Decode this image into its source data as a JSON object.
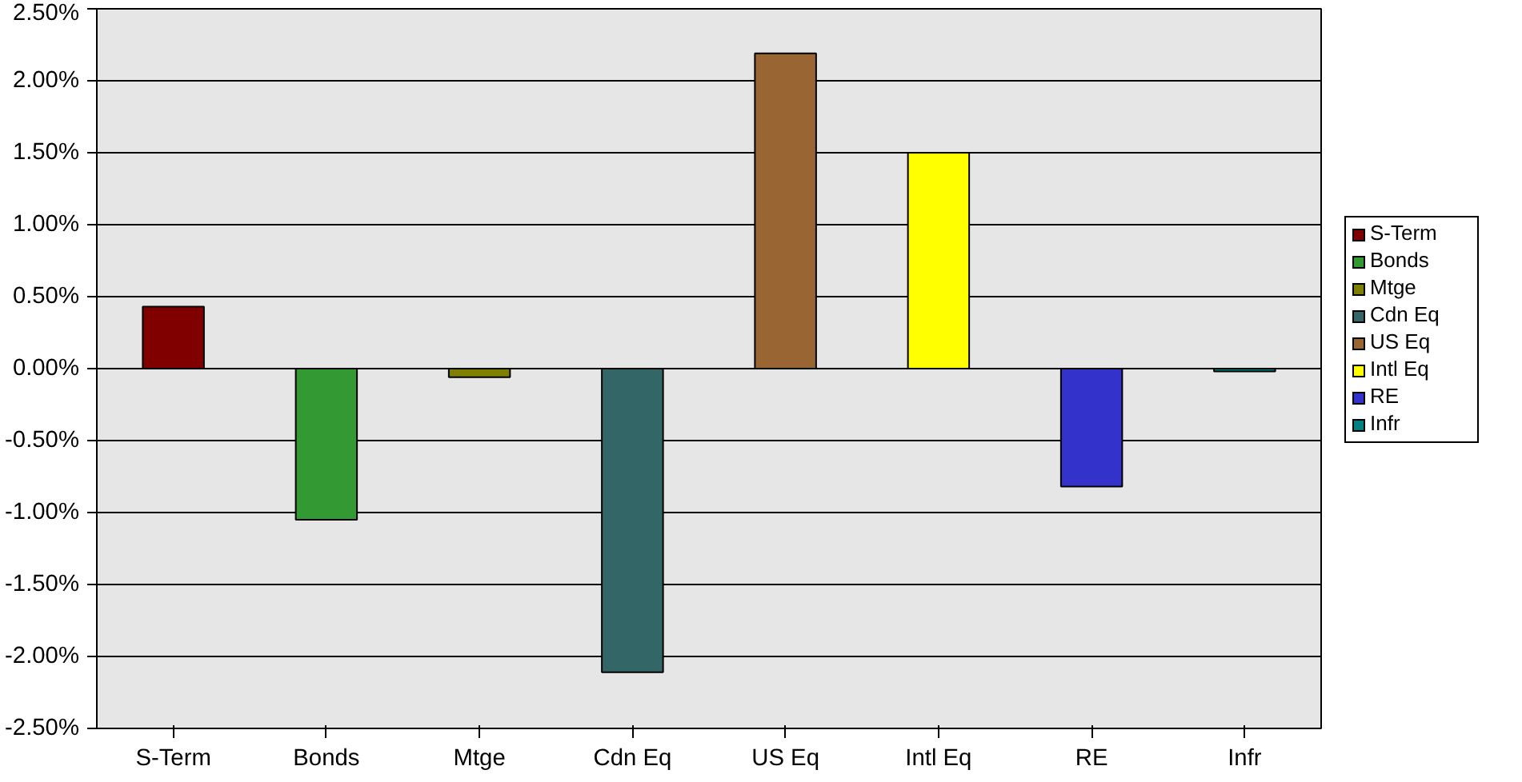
{
  "chart_data": {
    "type": "bar",
    "categories": [
      "S-Term",
      "Bonds",
      "Mtge",
      "Cdn Eq",
      "US Eq",
      "Intl Eq",
      "RE",
      "Infr"
    ],
    "stacked": true,
    "series": [
      {
        "name": "S-Term",
        "color": "#800000",
        "values": [
          0.43,
          null,
          null,
          null,
          null,
          null,
          null,
          null
        ]
      },
      {
        "name": "Bonds",
        "color": "#339933",
        "values": [
          null,
          -1.05,
          null,
          null,
          null,
          null,
          null,
          null
        ]
      },
      {
        "name": "Mtge",
        "color": "#808000",
        "values": [
          null,
          null,
          -0.06,
          null,
          null,
          null,
          null,
          null
        ]
      },
      {
        "name": "Cdn Eq",
        "color": "#336666",
        "values": [
          null,
          null,
          null,
          -2.11,
          null,
          null,
          null,
          null
        ]
      },
      {
        "name": "US Eq",
        "color": "#996633",
        "values": [
          null,
          null,
          null,
          null,
          2.19,
          null,
          null,
          null
        ]
      },
      {
        "name": "Intl Eq",
        "color": "#ffff00",
        "values": [
          null,
          null,
          null,
          null,
          null,
          1.5,
          null,
          null
        ]
      },
      {
        "name": "RE",
        "color": "#3333cc",
        "values": [
          null,
          null,
          null,
          null,
          null,
          null,
          -0.82,
          null
        ]
      },
      {
        "name": "Infr",
        "color": "#008080",
        "values": [
          null,
          null,
          null,
          null,
          null,
          null,
          null,
          -0.02
        ]
      }
    ],
    "ylim": [
      -2.5,
      2.5
    ],
    "yticks": [
      {
        "value": -2.5,
        "label": "-2.50%"
      },
      {
        "value": -2.0,
        "label": "-2.00%"
      },
      {
        "value": -1.5,
        "label": "-1.50%"
      },
      {
        "value": -1.0,
        "label": "-1.00%"
      },
      {
        "value": -0.5,
        "label": "-0.50%"
      },
      {
        "value": 0,
        "label": "0.00%"
      },
      {
        "value": 0.5,
        "label": "0.50%"
      },
      {
        "value": 1.0,
        "label": "1.00%"
      },
      {
        "value": 1.5,
        "label": "1.50%"
      },
      {
        "value": 2.0,
        "label": "2.00%"
      },
      {
        "value": 2.5,
        "label": "2.50%"
      }
    ],
    "grid": "y",
    "legend": "right"
  }
}
